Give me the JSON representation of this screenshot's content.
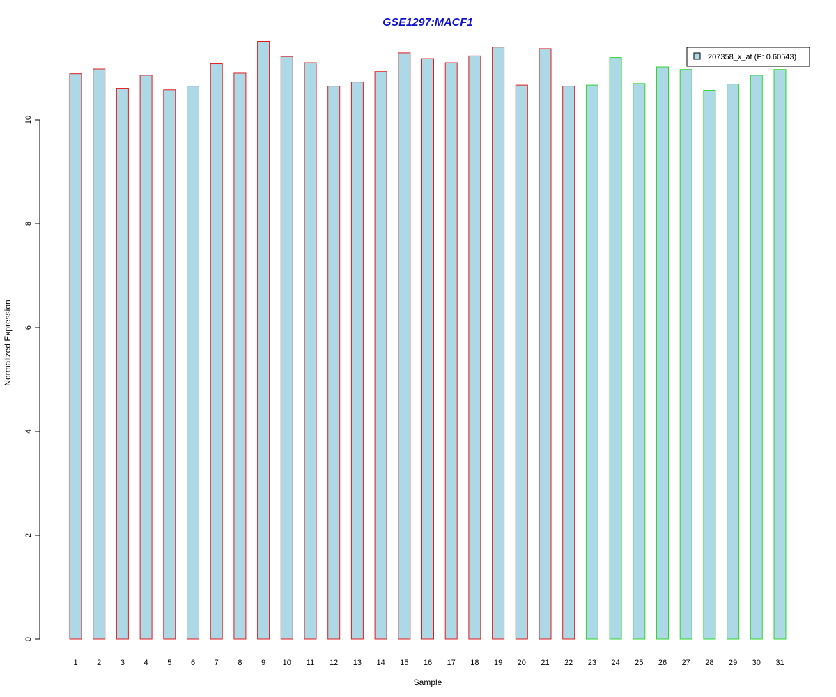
{
  "chart_data": {
    "type": "bar",
    "title": "GSE1297:MACF1",
    "xlabel": "Sample",
    "ylabel": "Normalized Expression",
    "ylim": [
      0,
      11.6
    ],
    "yticks": [
      0,
      2,
      4,
      6,
      8,
      10
    ],
    "categories": [
      "1",
      "2",
      "3",
      "4",
      "5",
      "6",
      "7",
      "8",
      "9",
      "10",
      "11",
      "12",
      "13",
      "14",
      "15",
      "16",
      "17",
      "18",
      "19",
      "20",
      "21",
      "22",
      "23",
      "24",
      "25",
      "26",
      "27",
      "28",
      "29",
      "30",
      "31"
    ],
    "series": [
      {
        "name": "207358_x_at (P: 0.60543)",
        "values": [
          10.89,
          10.98,
          10.61,
          10.86,
          10.58,
          10.65,
          11.08,
          10.9,
          11.51,
          11.22,
          11.1,
          10.65,
          10.73,
          10.93,
          11.29,
          11.18,
          11.1,
          11.23,
          11.4,
          10.67,
          11.37,
          10.65,
          10.67,
          11.2,
          10.7,
          11.02,
          10.97,
          10.57,
          10.69,
          10.86,
          10.97
        ]
      }
    ],
    "groups": [
      {
        "samples": [
          1,
          22
        ],
        "border_color": "#e31a1c"
      },
      {
        "samples": [
          23,
          31
        ],
        "border_color": "#2ed62e"
      }
    ],
    "bar_fill": "#add8e6",
    "title_color": "#1010d0",
    "legend_position": "top-right",
    "grid": false
  }
}
